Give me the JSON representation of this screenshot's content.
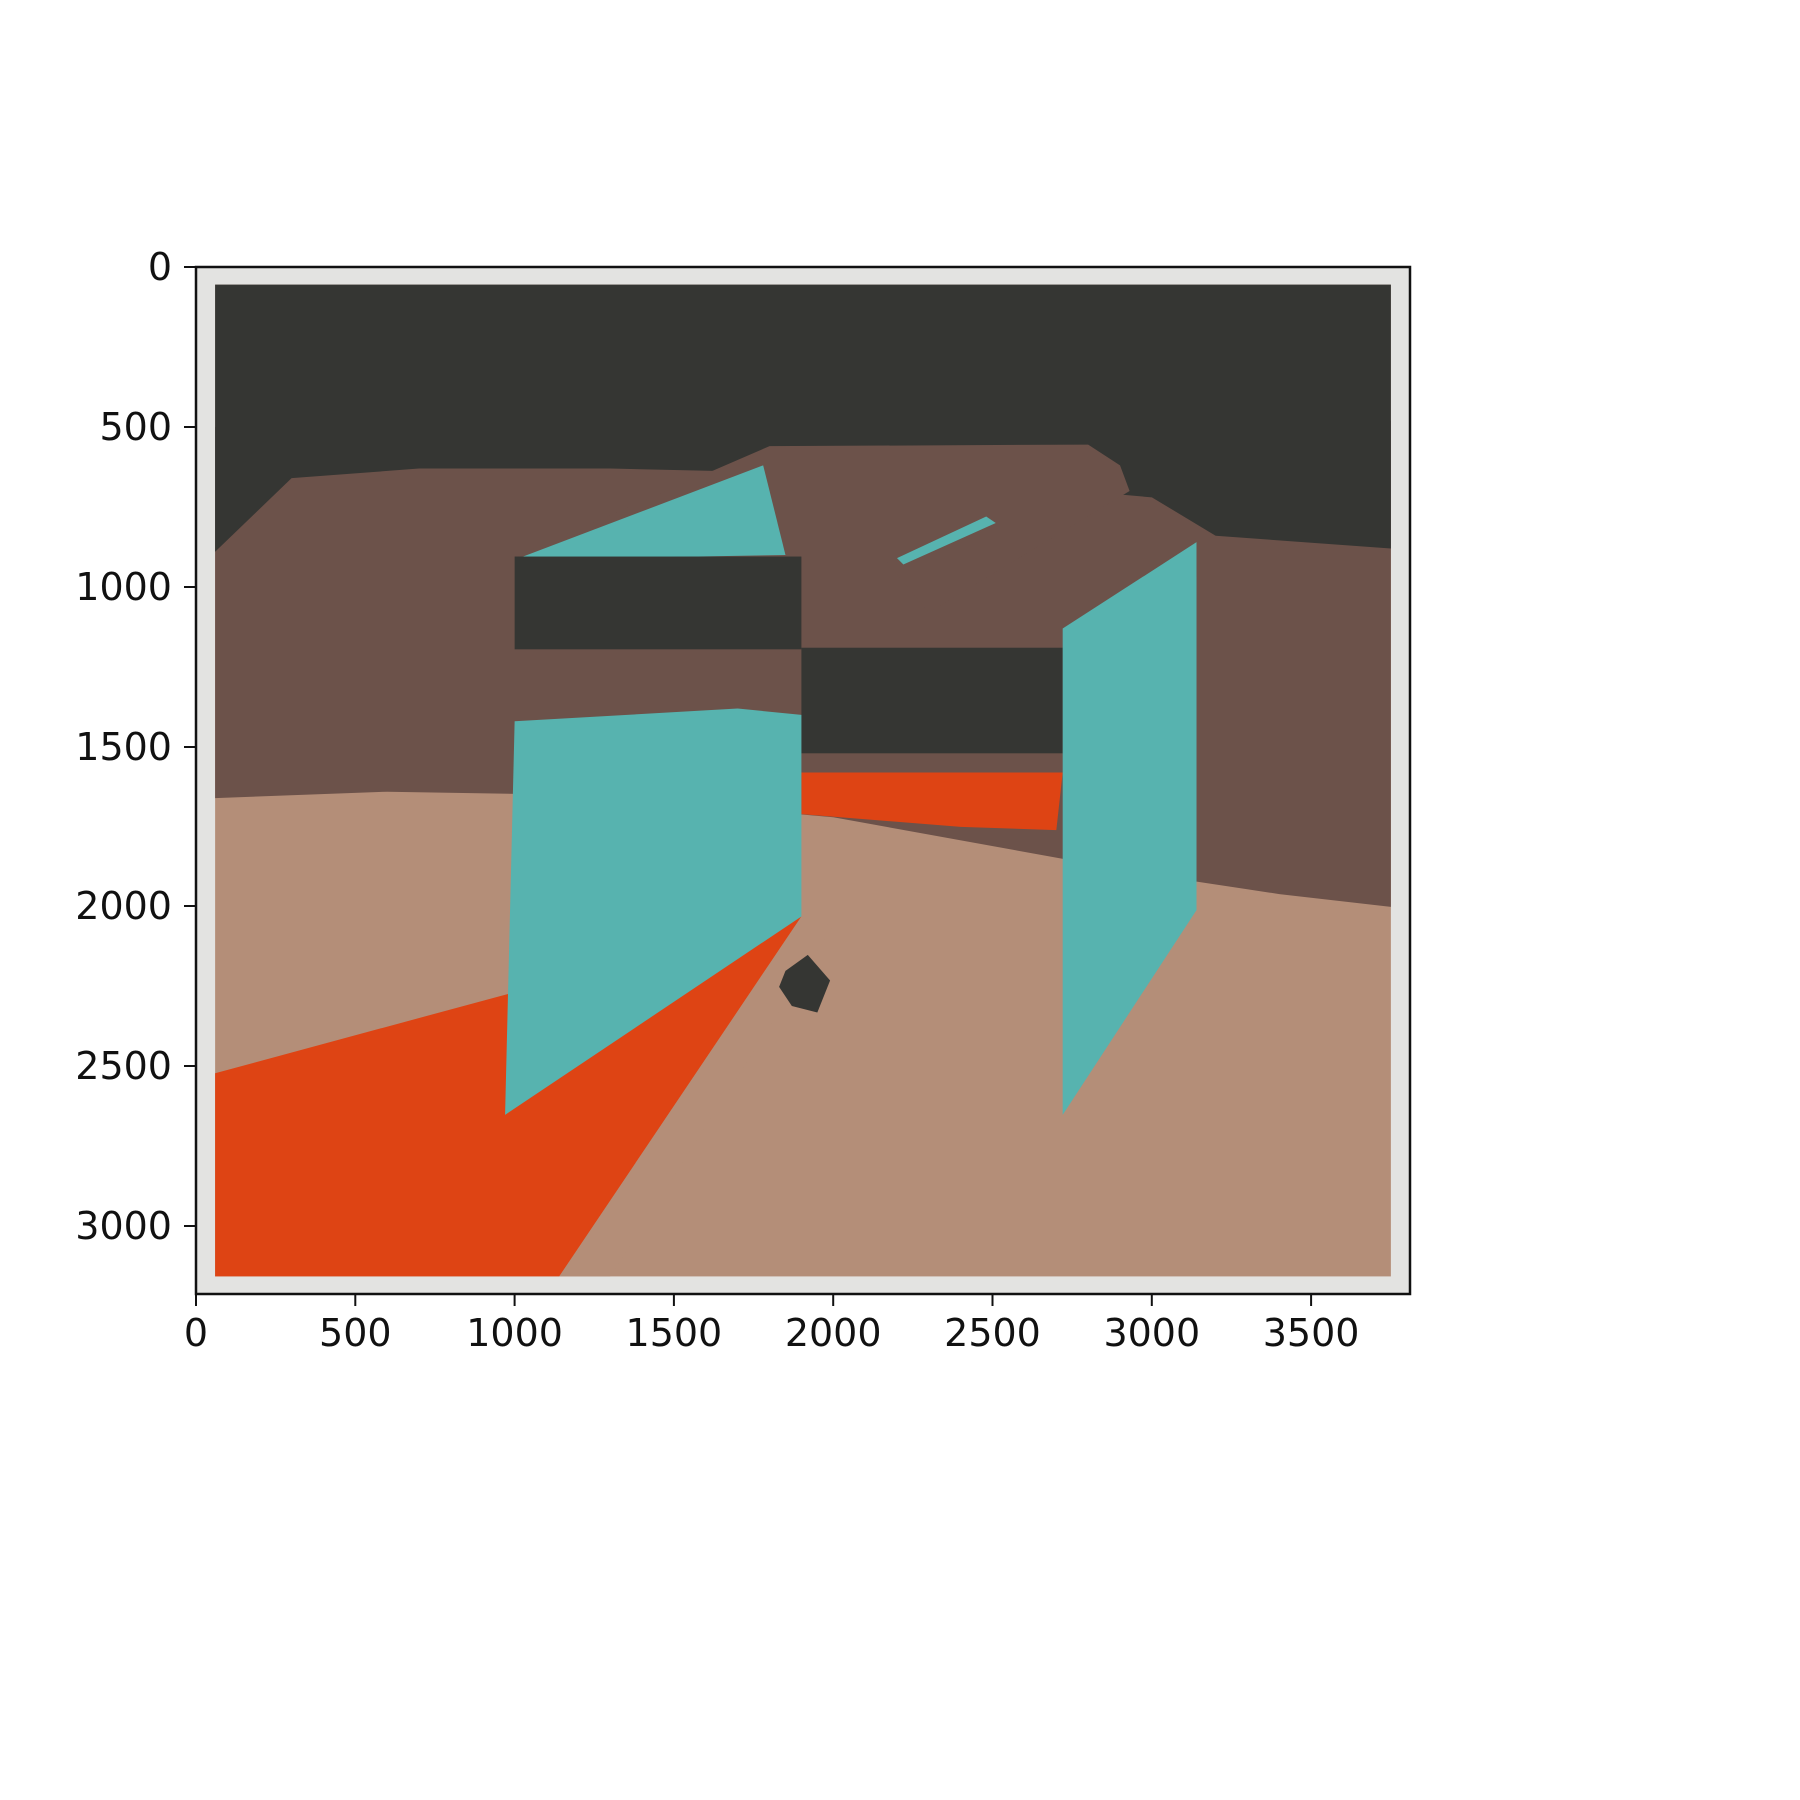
{
  "chart_data": {
    "type": "image",
    "title": "",
    "xlabel": "",
    "ylabel": "",
    "xlim": [
      0,
      3810
    ],
    "ylim": [
      3210,
      0
    ],
    "x_ticks": [
      0,
      500,
      1000,
      1500,
      2000,
      2500,
      3000,
      3500
    ],
    "y_ticks": [
      0,
      500,
      1000,
      1500,
      2000,
      2500,
      3000
    ],
    "grid": false,
    "axes_color": "#111111"
  },
  "artwork": {
    "subject": "abstract painting of an open box",
    "colors": {
      "frame": "#e3e3e1",
      "dark": "#353633",
      "brown": "#6c524a",
      "tan": "#b48e78",
      "teal": "#57b3af",
      "orange": "#de4414"
    }
  }
}
